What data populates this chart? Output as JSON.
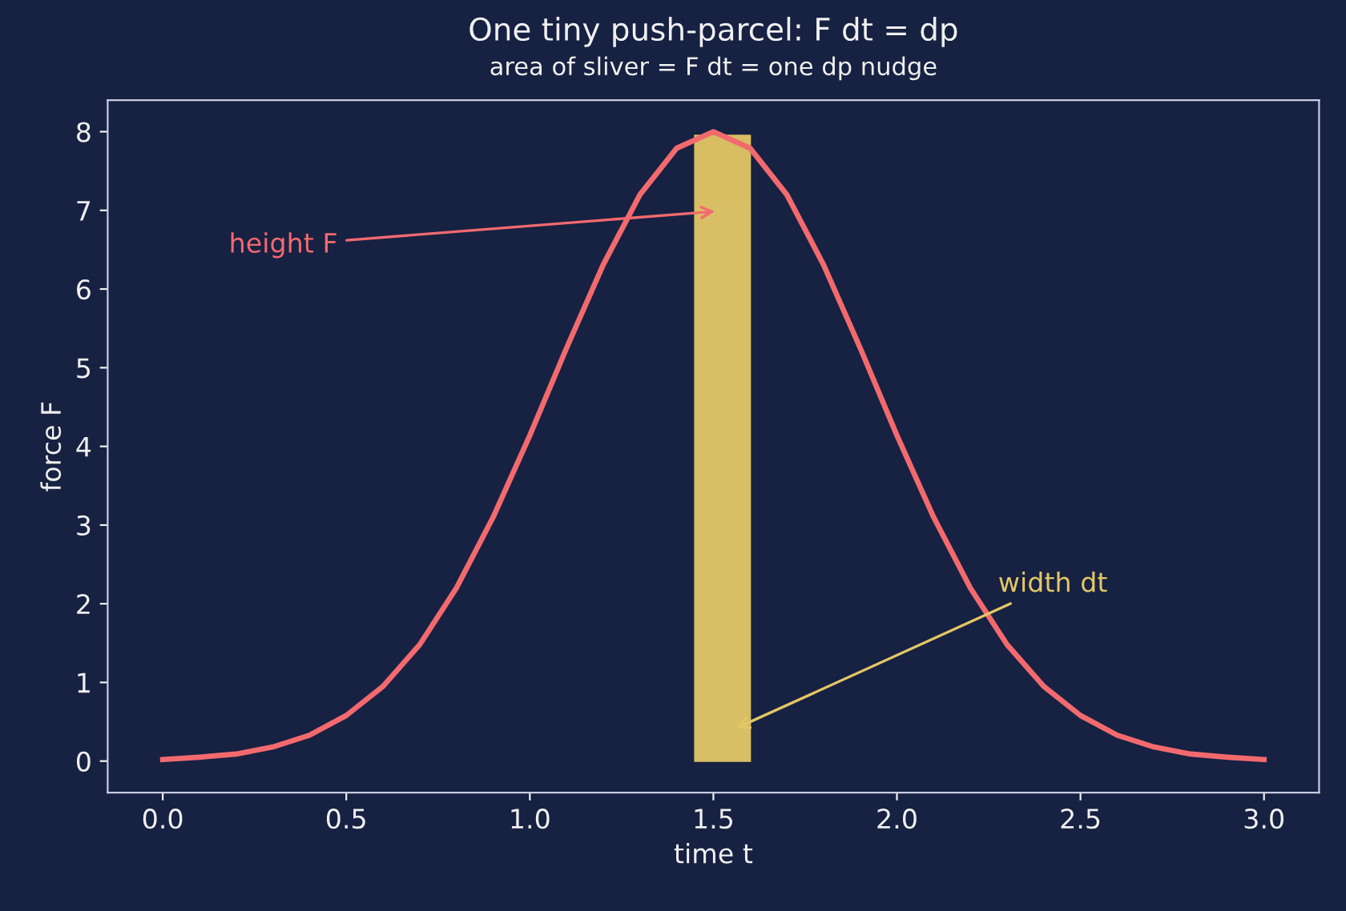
{
  "chart_data": {
    "type": "line",
    "title": "One tiny push-parcel: F dt = dp",
    "subtitle": "area of sliver = F dt = one dp nudge",
    "xlabel": "time t",
    "ylabel": "force F",
    "series": [
      {
        "type": "histogram",
        "color": "#e3c766",
        "bins": [
          1.45,
          1.6
        ],
        "values": [
          7.95
        ]
      },
      {
        "color": "#f26a6e",
        "x": [
          0.0,
          0.1,
          0.2,
          0.3,
          0.4,
          0.5,
          0.6,
          0.7,
          0.8,
          0.9,
          1.0,
          1.1,
          1.2,
          1.3,
          1.4,
          1.5,
          1.6,
          1.7,
          1.8,
          1.9,
          2.0,
          2.1,
          2.2,
          2.3,
          2.4,
          2.5,
          2.6,
          2.7,
          2.8,
          2.9,
          3.0
        ],
        "values": [
          0.02,
          0.05,
          0.09,
          0.18,
          0.33,
          0.58,
          0.95,
          1.48,
          2.2,
          3.1,
          4.14,
          5.25,
          6.31,
          7.2,
          7.79,
          8,
          7.79,
          7.2,
          6.31,
          5.25,
          4.14,
          3.1,
          2.2,
          1.48,
          0.95,
          0.58,
          0.33,
          0.18,
          0.09,
          0.05,
          0.02
        ]
      }
    ],
    "annotations": [
      "height F",
      "width dt"
    ],
    "xlim": [
      -0.15,
      3.15
    ],
    "ylim": [
      -0.4,
      8.4
    ],
    "xticks": [
      {
        "value": 0,
        "label": "0.0"
      },
      0.5,
      {
        "value": 1,
        "label": "1.0"
      },
      1.5,
      {
        "value": 2,
        "label": "2.0"
      },
      2.5,
      {
        "value": 3,
        "label": "3.0"
      }
    ],
    "yticks": [
      0,
      1,
      2,
      3,
      4,
      5,
      6,
      7,
      8
    ],
    "grid": false,
    "legend": false
  }
}
